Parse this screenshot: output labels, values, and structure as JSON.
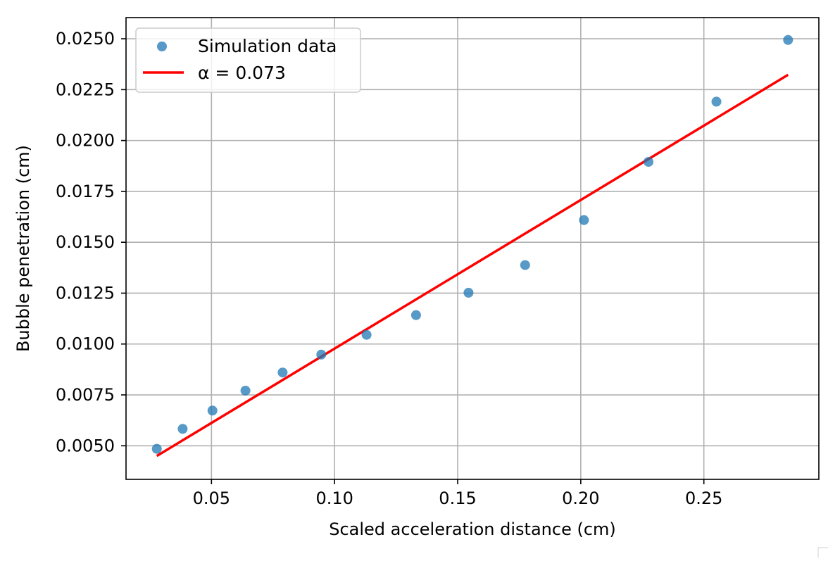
{
  "chart_data": {
    "type": "scatter",
    "xlabel": "Scaled acceleration distance (cm)",
    "ylabel": "Bubble penetration (cm)",
    "xlim": [
      0.0153,
      0.2967
    ],
    "ylim": [
      0.00335,
      0.02604
    ],
    "grid": true,
    "legend_position": "top-left",
    "x_ticks": [
      0.05,
      0.1,
      0.15,
      0.2,
      0.25
    ],
    "x_tick_labels": [
      "0.05",
      "0.10",
      "0.15",
      "0.20",
      "0.25"
    ],
    "y_ticks": [
      0.005,
      0.0075,
      0.01,
      0.0125,
      0.015,
      0.0175,
      0.02,
      0.0225,
      0.025
    ],
    "y_tick_labels": [
      "0.0050",
      "0.0075",
      "0.0100",
      "0.0125",
      "0.0150",
      "0.0175",
      "0.0200",
      "0.0225",
      "0.0250"
    ],
    "series": [
      {
        "name": "Simulation data",
        "kind": "scatter",
        "color": "#1f77b4",
        "x": [
          0.0278,
          0.0383,
          0.0504,
          0.0638,
          0.0789,
          0.0946,
          0.113,
          0.1331,
          0.1544,
          0.1774,
          0.2013,
          0.2275,
          0.2551,
          0.2842
        ],
        "y": [
          0.00485,
          0.00583,
          0.00673,
          0.00771,
          0.0086,
          0.00948,
          0.01045,
          0.01142,
          0.01252,
          0.01388,
          0.01609,
          0.01895,
          0.02191,
          0.02494
        ]
      },
      {
        "name": "α = 0.073",
        "kind": "line",
        "color": "#ff0000",
        "x": [
          0.0278,
          0.2842
        ],
        "y": [
          0.0045,
          0.02323
        ]
      }
    ]
  }
}
